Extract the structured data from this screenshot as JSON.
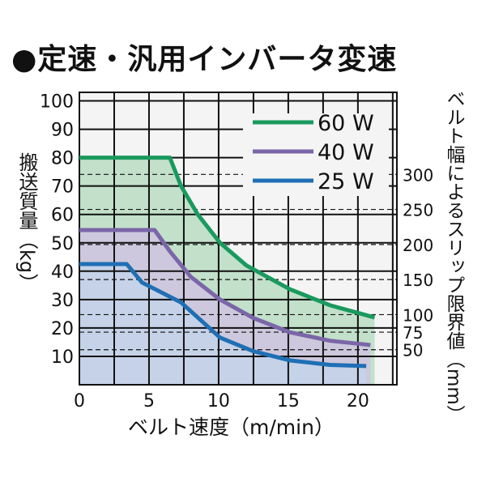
{
  "chart_data": {
    "type": "area",
    "title": "●定速・汎用インバータ変速",
    "xlabel": "ベルト速度（m/min）",
    "ylabel": "搬送質量（kg）",
    "y2label": "ベルト幅によるスリップ限界値（mm）",
    "xlim": [
      0,
      22.8
    ],
    "ylim": [
      0,
      103
    ],
    "xticks": [
      0,
      5,
      10,
      15,
      20
    ],
    "yticks": [
      10,
      20,
      30,
      40,
      50,
      60,
      70,
      80,
      90,
      100
    ],
    "y2ticks": [
      50,
      75,
      100,
      150,
      200,
      250,
      300
    ],
    "y2_kg_per_mm": 0.247,
    "grid": true,
    "legend_position": "top-right",
    "series": [
      {
        "name": "60 W",
        "color": "#1a9a5e",
        "fill": "#b9dcc2",
        "points": [
          [
            0,
            80
          ],
          [
            6.5,
            80
          ],
          [
            7.3,
            70
          ],
          [
            8.5,
            60
          ],
          [
            10.1,
            50
          ],
          [
            12,
            42
          ],
          [
            15.1,
            33.7
          ],
          [
            18,
            28
          ],
          [
            21.2,
            23.7
          ]
        ]
      },
      {
        "name": "40 W",
        "color": "#7b66a8",
        "fill": "#cfc3e0",
        "points": [
          [
            0,
            54.5
          ],
          [
            5.4,
            54.5
          ],
          [
            6.5,
            47
          ],
          [
            8,
            38
          ],
          [
            10.1,
            30
          ],
          [
            12.5,
            23.5
          ],
          [
            15.1,
            18.5
          ],
          [
            18,
            15.5
          ],
          [
            20.9,
            14
          ]
        ]
      },
      {
        "name": "25 W",
        "color": "#1f6fb4",
        "fill": "#c3d3ea",
        "points": [
          [
            0,
            42.5
          ],
          [
            3.4,
            42.5
          ],
          [
            4.5,
            36
          ],
          [
            7.3,
            29
          ],
          [
            10.1,
            16.6
          ],
          [
            12.5,
            11.8
          ],
          [
            15.1,
            8.6
          ],
          [
            18,
            7
          ],
          [
            20.6,
            6.6
          ]
        ]
      }
    ]
  }
}
